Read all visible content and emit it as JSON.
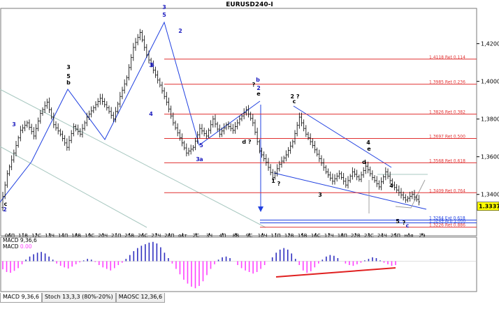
{
  "chart_data": [
    {
      "type": "candlestick",
      "title": "EURUSD240-I",
      "current_price": 1.3337,
      "y_axis_ticks": [
        "1,4200",
        "1,4000",
        "1,3800",
        "1,3600",
        "1,3400"
      ],
      "ylim": [
        1.3225,
        1.438
      ],
      "x_axis_ticks": [
        "06П",
        "11В",
        "12С",
        "13Ч",
        "14П",
        "18В",
        "19С",
        "20Ч",
        "21П",
        "25В",
        "26С",
        "27Ч",
        "28П",
        "окт",
        "2С",
        "3Ч",
        "4П",
        "8В",
        "9С",
        "10Ч",
        "11П",
        "12В",
        "15В",
        "16С",
        "17Ч",
        "18П",
        "22В",
        "23С",
        "24Ч",
        "25П",
        "ноя",
        "29"
      ],
      "fibonacci_levels": [
        {
          "price": 1.4118,
          "label": "1.4118 Ret 0.114"
        },
        {
          "price": 1.3985,
          "label": "1.3985 Ret 0.236"
        },
        {
          "price": 1.3826,
          "label": "1.3826 Ret 0.382"
        },
        {
          "price": 1.3697,
          "label": "1.3697 Ret 0.500"
        },
        {
          "price": 1.3568,
          "label": "1.3568 Ret 0.618"
        },
        {
          "price": 1.3409,
          "label": "1.3409 Ret 0.764"
        },
        {
          "price": 1.3226,
          "label": "1.3226 Ret 0.886"
        },
        {
          "price": 1.3249,
          "label": "1.3249 Arb 1.000"
        },
        {
          "price": 1.3264,
          "label": "1.3264 Ext 0.618"
        }
      ],
      "wave_labels": [
        {
          "text": "3",
          "color": "#2020c0"
        },
        {
          "text": "2",
          "color": "#2020c0"
        },
        {
          "text": "c",
          "color": "#000000"
        },
        {
          "text": "3",
          "color": "#000000"
        },
        {
          "text": "5",
          "color": "#000000"
        },
        {
          "text": "b",
          "color": "#000000"
        },
        {
          "text": "3",
          "color": "#2020c0"
        },
        {
          "text": "5",
          "color": "#2020c0"
        },
        {
          "text": "2",
          "color": "#2020c0"
        },
        {
          "text": "3",
          "color": "#2020c0"
        },
        {
          "text": "4",
          "color": "#2020c0"
        },
        {
          "text": "5",
          "color": "#2020c0"
        },
        {
          "text": "5",
          "color": "#2020c0"
        },
        {
          "text": "3",
          "color": "#2020c0"
        },
        {
          "text": "a",
          "color": "#2020c0"
        },
        {
          "text": "b",
          "color": "#2020c0"
        },
        {
          "text": "2",
          "color": "#2020c0"
        },
        {
          "text": "?",
          "color": "#000000"
        },
        {
          "text": "e",
          "color": "#000000"
        },
        {
          "text": "d ?",
          "color": "#000000"
        },
        {
          "text": "2 ?",
          "color": "#000000"
        },
        {
          "text": "c",
          "color": "#000000"
        },
        {
          "text": "4",
          "color": "#000000"
        },
        {
          "text": "e",
          "color": "#000000"
        },
        {
          "text": "d",
          "color": "#000000"
        },
        {
          "text": "1",
          "color": "#000000"
        },
        {
          "text": "?",
          "color": "#000000"
        },
        {
          "text": "3",
          "color": "#000000"
        },
        {
          "text": "4",
          "color": "#000000"
        },
        {
          "text": "5",
          "color": "#000000"
        },
        {
          "text": "?",
          "color": "#000000"
        },
        {
          "text": "c",
          "color": "#2020c0"
        }
      ],
      "price_path": [
        1.333,
        1.351,
        1.362,
        1.374,
        1.378,
        1.371,
        1.383,
        1.389,
        1.377,
        1.372,
        1.365,
        1.376,
        1.372,
        1.381,
        1.386,
        1.391,
        1.386,
        1.38,
        1.392,
        1.402,
        1.418,
        1.426,
        1.414,
        1.406,
        1.398,
        1.389,
        1.378,
        1.37,
        1.362,
        1.365,
        1.375,
        1.371,
        1.38,
        1.372,
        1.377,
        1.374,
        1.38,
        1.385,
        1.378,
        1.363,
        1.357,
        1.349,
        1.356,
        1.361,
        1.368,
        1.381,
        1.372,
        1.366,
        1.359,
        1.352,
        1.347,
        1.351,
        1.345,
        1.352,
        1.348,
        1.355,
        1.349,
        1.344,
        1.352,
        1.345,
        1.341,
        1.337,
        1.34,
        1.336
      ]
    },
    {
      "type": "bar",
      "title": "MACD 9,36,6",
      "indicator": "MACD",
      "series": [
        {
          "name": "MACD",
          "display_value": "0.00",
          "values": [
            -0.0021,
            -0.0028,
            -0.003,
            -0.0025,
            -0.0018,
            -0.0008,
            0.0004,
            0.0012,
            0.0018,
            0.0022,
            0.0024,
            0.002,
            0.0012,
            0.0004,
            -0.0006,
            -0.0012,
            -0.0016,
            -0.0019,
            -0.0014,
            -0.0008,
            -0.0003,
            0.0002,
            0.0006,
            0.0004,
            -0.0002,
            -0.001,
            -0.0016,
            -0.002,
            -0.0024,
            -0.0018,
            -0.001,
            -0.0004,
            0.0006,
            0.0016,
            0.0026,
            0.0034,
            0.004,
            0.0044,
            0.0048,
            0.005,
            0.0046,
            0.0036,
            0.0022,
            0.0008,
            -0.0006,
            -0.002,
            -0.0034,
            -0.0048,
            -0.0058,
            -0.0066,
            -0.007,
            -0.0064,
            -0.0052,
            -0.0036,
            -0.002,
            -0.0008,
            0.0004,
            0.001,
            0.0012,
            0.0008,
            0.0,
            -0.001,
            -0.0018,
            -0.0024,
            -0.0028,
            -0.0032,
            -0.0028,
            -0.002,
            -0.001,
            0.0,
            0.001,
            0.0022,
            0.003,
            0.0034,
            0.003,
            0.002,
            0.0006,
            -0.001,
            -0.0024,
            -0.003,
            -0.0026,
            -0.0016,
            -0.0006,
            0.0004,
            0.0012,
            0.0016,
            0.0014,
            0.0008,
            0.0,
            -0.0006,
            -0.001,
            -0.0012,
            -0.0008,
            -0.0004,
            0.0002,
            0.0006,
            0.001,
            0.0008,
            0.0002,
            -0.0004,
            -0.0008,
            -0.0012,
            -0.001
          ]
        }
      ],
      "ylim": [
        -0.0075,
        0.0055
      ]
    }
  ],
  "indicator_tabs": [
    "MACD 9,36,6",
    "Stoch 13,3,3 (80%-20%)",
    "MAOSC 12,36,6"
  ],
  "colors": {
    "fib": "#e03030",
    "trend": "#2040e0",
    "channel": "#a8c8c0",
    "macd_pos": "#3030c0",
    "macd_neg": "#ff40ff",
    "divergence": "#e02020",
    "candle": "#000000"
  }
}
